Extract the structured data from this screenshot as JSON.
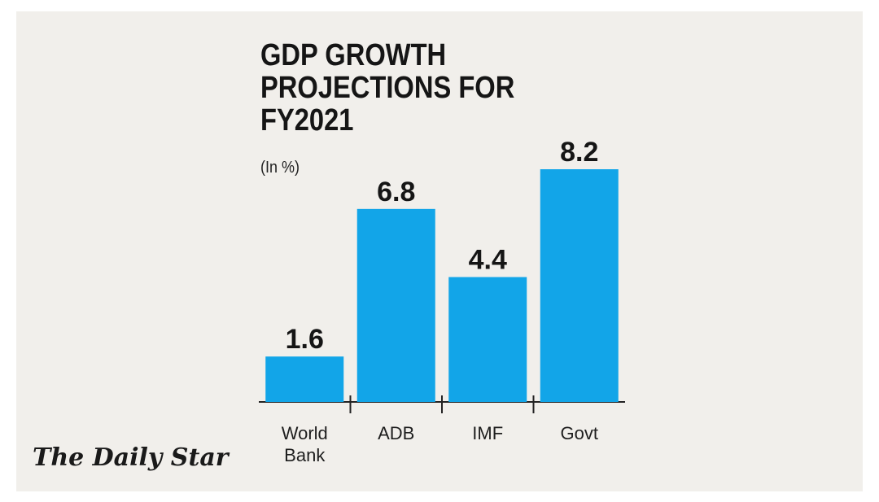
{
  "chart_data": {
    "type": "bar",
    "title_lines": [
      "GDP GROWTH",
      "PROJECTIONS FOR",
      "FY2021"
    ],
    "unit": "(In %)",
    "categories": [
      [
        "World",
        "Bank"
      ],
      [
        "ADB"
      ],
      [
        "IMF"
      ],
      [
        "Govt"
      ]
    ],
    "values": [
      1.6,
      6.8,
      4.4,
      8.2
    ],
    "value_labels": [
      "1.6",
      "6.8",
      "4.4",
      "8.2"
    ],
    "bar_color": "#12a5e8",
    "ylim": [
      0,
      8.2
    ],
    "grid": false
  },
  "brand": "The Daily Star",
  "colors": {
    "background": "#f1efeb",
    "text": "#151515",
    "bar": "#12a5e8"
  }
}
